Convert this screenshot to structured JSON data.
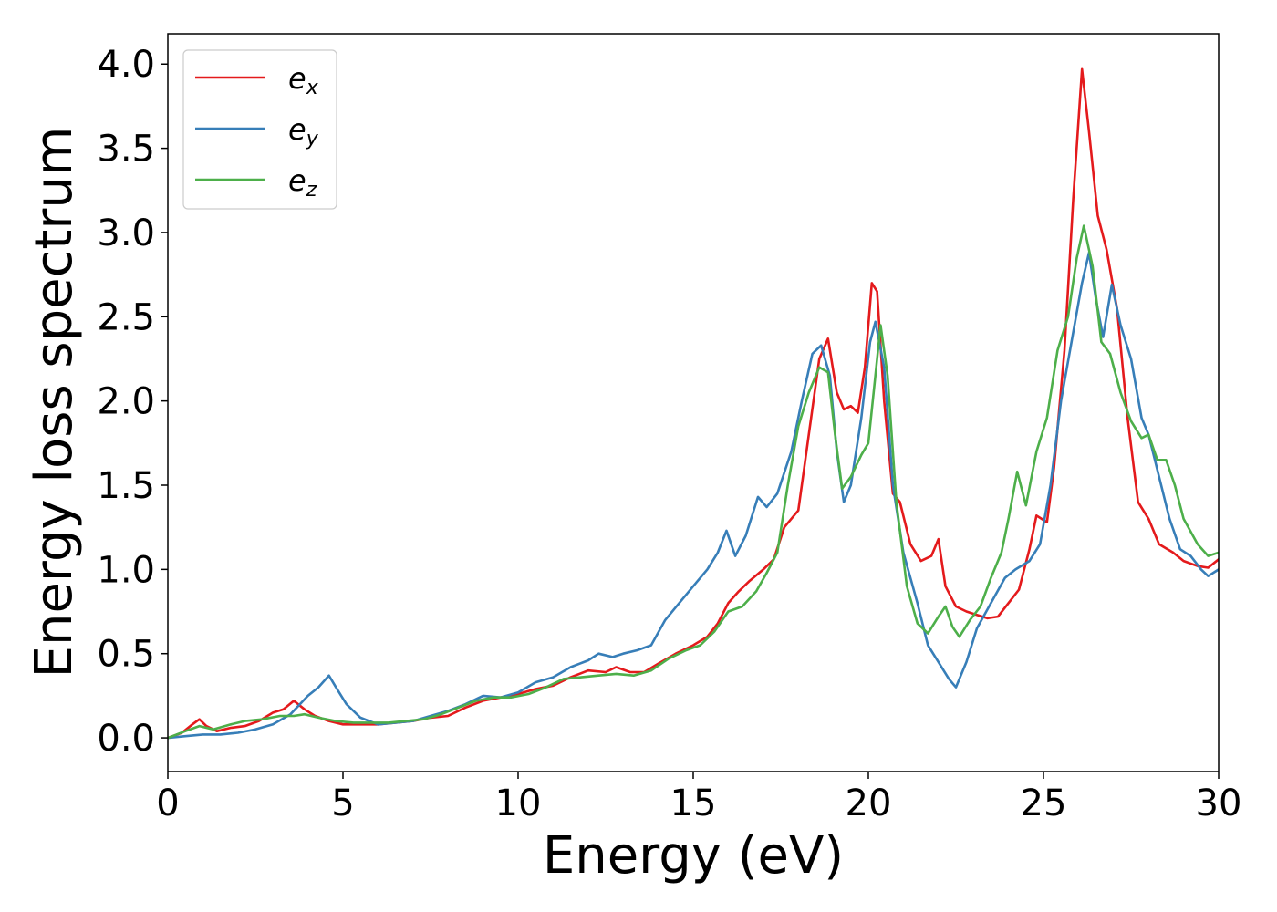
{
  "chart_data": {
    "type": "line",
    "title": "",
    "xlabel": "Energy (eV)",
    "ylabel": "Energy loss spectrum",
    "xlim": [
      0,
      30
    ],
    "ylim": [
      -0.2,
      4.18
    ],
    "xticks": [
      0,
      5,
      10,
      15,
      20,
      25,
      30
    ],
    "xtick_labels": [
      "0",
      "5",
      "10",
      "15",
      "20",
      "25",
      "30"
    ],
    "yticks": [
      0.0,
      0.5,
      1.0,
      1.5,
      2.0,
      2.5,
      3.0,
      3.5,
      4.0
    ],
    "ytick_labels": [
      "0.0",
      "0.5",
      "1.0",
      "1.5",
      "2.0",
      "2.5",
      "3.0",
      "3.5",
      "4.0"
    ],
    "grid": false,
    "legend_position": "top-left",
    "series": [
      {
        "name": "e",
        "subscript": "x",
        "color": "#e41a1c",
        "points": [
          [
            0,
            0
          ],
          [
            0.4,
            0.03
          ],
          [
            0.7,
            0.08
          ],
          [
            0.9,
            0.11
          ],
          [
            1.1,
            0.07
          ],
          [
            1.4,
            0.04
          ],
          [
            1.8,
            0.06
          ],
          [
            2.2,
            0.07
          ],
          [
            2.6,
            0.1
          ],
          [
            3.0,
            0.15
          ],
          [
            3.3,
            0.17
          ],
          [
            3.6,
            0.22
          ],
          [
            3.9,
            0.17
          ],
          [
            4.2,
            0.13
          ],
          [
            4.6,
            0.1
          ],
          [
            5.0,
            0.08
          ],
          [
            5.5,
            0.08
          ],
          [
            6.0,
            0.08
          ],
          [
            6.5,
            0.09
          ],
          [
            7.0,
            0.1
          ],
          [
            7.5,
            0.12
          ],
          [
            8.0,
            0.13
          ],
          [
            8.5,
            0.18
          ],
          [
            9.0,
            0.22
          ],
          [
            9.5,
            0.24
          ],
          [
            10.0,
            0.26
          ],
          [
            10.5,
            0.29
          ],
          [
            11.0,
            0.31
          ],
          [
            11.5,
            0.36
          ],
          [
            12.0,
            0.4
          ],
          [
            12.5,
            0.39
          ],
          [
            12.8,
            0.42
          ],
          [
            13.2,
            0.39
          ],
          [
            13.6,
            0.39
          ],
          [
            14.0,
            0.44
          ],
          [
            14.5,
            0.5
          ],
          [
            15.0,
            0.55
          ],
          [
            15.4,
            0.6
          ],
          [
            15.7,
            0.68
          ],
          [
            16.0,
            0.8
          ],
          [
            16.3,
            0.87
          ],
          [
            16.6,
            0.93
          ],
          [
            17.0,
            1.0
          ],
          [
            17.3,
            1.06
          ],
          [
            17.6,
            1.25
          ],
          [
            17.8,
            1.3
          ],
          [
            18.0,
            1.35
          ],
          [
            18.3,
            1.8
          ],
          [
            18.6,
            2.25
          ],
          [
            18.85,
            2.37
          ],
          [
            19.1,
            2.05
          ],
          [
            19.3,
            1.95
          ],
          [
            19.5,
            1.97
          ],
          [
            19.7,
            1.93
          ],
          [
            19.9,
            2.2
          ],
          [
            20.1,
            2.7
          ],
          [
            20.25,
            2.65
          ],
          [
            20.45,
            2.0
          ],
          [
            20.7,
            1.45
          ],
          [
            20.9,
            1.4
          ],
          [
            21.2,
            1.15
          ],
          [
            21.5,
            1.05
          ],
          [
            21.8,
            1.08
          ],
          [
            22.0,
            1.18
          ],
          [
            22.2,
            0.9
          ],
          [
            22.5,
            0.78
          ],
          [
            22.8,
            0.75
          ],
          [
            23.1,
            0.73
          ],
          [
            23.4,
            0.71
          ],
          [
            23.7,
            0.72
          ],
          [
            24.0,
            0.8
          ],
          [
            24.3,
            0.88
          ],
          [
            24.6,
            1.12
          ],
          [
            24.8,
            1.32
          ],
          [
            25.1,
            1.28
          ],
          [
            25.3,
            1.6
          ],
          [
            25.6,
            2.3
          ],
          [
            25.85,
            3.2
          ],
          [
            26.1,
            3.97
          ],
          [
            26.3,
            3.6
          ],
          [
            26.55,
            3.1
          ],
          [
            26.8,
            2.9
          ],
          [
            27.1,
            2.55
          ],
          [
            27.4,
            1.9
          ],
          [
            27.7,
            1.4
          ],
          [
            28.0,
            1.3
          ],
          [
            28.3,
            1.15
          ],
          [
            28.7,
            1.1
          ],
          [
            29.0,
            1.05
          ],
          [
            29.4,
            1.02
          ],
          [
            29.7,
            1.01
          ],
          [
            30,
            1.06
          ]
        ]
      },
      {
        "name": "e",
        "subscript": "y",
        "color": "#377eb8",
        "points": [
          [
            0,
            0
          ],
          [
            0.5,
            0.01
          ],
          [
            1.0,
            0.02
          ],
          [
            1.5,
            0.02
          ],
          [
            2.0,
            0.03
          ],
          [
            2.5,
            0.05
          ],
          [
            3.0,
            0.08
          ],
          [
            3.5,
            0.14
          ],
          [
            4.0,
            0.25
          ],
          [
            4.3,
            0.3
          ],
          [
            4.6,
            0.37
          ],
          [
            4.8,
            0.3
          ],
          [
            5.1,
            0.2
          ],
          [
            5.5,
            0.12
          ],
          [
            6.0,
            0.08
          ],
          [
            6.5,
            0.09
          ],
          [
            7.0,
            0.1
          ],
          [
            7.5,
            0.13
          ],
          [
            8.0,
            0.16
          ],
          [
            8.5,
            0.2
          ],
          [
            9.0,
            0.25
          ],
          [
            9.5,
            0.24
          ],
          [
            10.0,
            0.27
          ],
          [
            10.5,
            0.33
          ],
          [
            11.0,
            0.36
          ],
          [
            11.5,
            0.42
          ],
          [
            12.0,
            0.46
          ],
          [
            12.3,
            0.5
          ],
          [
            12.7,
            0.48
          ],
          [
            13.0,
            0.5
          ],
          [
            13.4,
            0.52
          ],
          [
            13.8,
            0.55
          ],
          [
            14.2,
            0.7
          ],
          [
            14.6,
            0.8
          ],
          [
            15.0,
            0.9
          ],
          [
            15.4,
            1.0
          ],
          [
            15.7,
            1.1
          ],
          [
            15.95,
            1.23
          ],
          [
            16.2,
            1.08
          ],
          [
            16.5,
            1.2
          ],
          [
            16.85,
            1.43
          ],
          [
            17.1,
            1.37
          ],
          [
            17.4,
            1.45
          ],
          [
            17.8,
            1.7
          ],
          [
            18.1,
            2.0
          ],
          [
            18.4,
            2.28
          ],
          [
            18.65,
            2.33
          ],
          [
            18.9,
            2.15
          ],
          [
            19.1,
            1.7
          ],
          [
            19.3,
            1.4
          ],
          [
            19.5,
            1.5
          ],
          [
            19.8,
            1.9
          ],
          [
            20.05,
            2.35
          ],
          [
            20.2,
            2.47
          ],
          [
            20.45,
            2.2
          ],
          [
            20.7,
            1.5
          ],
          [
            21.0,
            1.1
          ],
          [
            21.4,
            0.8
          ],
          [
            21.7,
            0.55
          ],
          [
            22.0,
            0.45
          ],
          [
            22.3,
            0.35
          ],
          [
            22.5,
            0.3
          ],
          [
            22.8,
            0.45
          ],
          [
            23.1,
            0.65
          ],
          [
            23.5,
            0.8
          ],
          [
            23.9,
            0.95
          ],
          [
            24.2,
            1.0
          ],
          [
            24.6,
            1.05
          ],
          [
            24.9,
            1.15
          ],
          [
            25.2,
            1.5
          ],
          [
            25.5,
            2.0
          ],
          [
            25.8,
            2.35
          ],
          [
            26.1,
            2.7
          ],
          [
            26.3,
            2.88
          ],
          [
            26.5,
            2.6
          ],
          [
            26.7,
            2.38
          ],
          [
            26.95,
            2.69
          ],
          [
            27.2,
            2.45
          ],
          [
            27.5,
            2.25
          ],
          [
            27.8,
            1.9
          ],
          [
            28.0,
            1.8
          ],
          [
            28.3,
            1.55
          ],
          [
            28.6,
            1.3
          ],
          [
            28.9,
            1.12
          ],
          [
            29.2,
            1.08
          ],
          [
            29.5,
            1.0
          ],
          [
            29.7,
            0.96
          ],
          [
            30,
            1.0
          ]
        ]
      },
      {
        "name": "e",
        "subscript": "z",
        "color": "#4daf4a",
        "points": [
          [
            0,
            0
          ],
          [
            0.5,
            0.04
          ],
          [
            0.9,
            0.07
          ],
          [
            1.3,
            0.05
          ],
          [
            1.8,
            0.08
          ],
          [
            2.2,
            0.1
          ],
          [
            2.7,
            0.11
          ],
          [
            3.2,
            0.13
          ],
          [
            3.6,
            0.13
          ],
          [
            3.9,
            0.14
          ],
          [
            4.3,
            0.12
          ],
          [
            4.8,
            0.1
          ],
          [
            5.3,
            0.09
          ],
          [
            5.8,
            0.09
          ],
          [
            6.3,
            0.09
          ],
          [
            6.8,
            0.1
          ],
          [
            7.3,
            0.11
          ],
          [
            7.8,
            0.14
          ],
          [
            8.3,
            0.18
          ],
          [
            8.8,
            0.22
          ],
          [
            9.3,
            0.24
          ],
          [
            9.8,
            0.24
          ],
          [
            10.3,
            0.26
          ],
          [
            10.8,
            0.3
          ],
          [
            11.3,
            0.35
          ],
          [
            11.8,
            0.36
          ],
          [
            12.3,
            0.37
          ],
          [
            12.8,
            0.38
          ],
          [
            13.3,
            0.37
          ],
          [
            13.8,
            0.4
          ],
          [
            14.3,
            0.47
          ],
          [
            14.8,
            0.52
          ],
          [
            15.2,
            0.55
          ],
          [
            15.6,
            0.63
          ],
          [
            16.0,
            0.75
          ],
          [
            16.4,
            0.78
          ],
          [
            16.8,
            0.87
          ],
          [
            17.1,
            0.98
          ],
          [
            17.4,
            1.1
          ],
          [
            17.7,
            1.5
          ],
          [
            18.0,
            1.85
          ],
          [
            18.3,
            2.05
          ],
          [
            18.6,
            2.2
          ],
          [
            18.85,
            2.17
          ],
          [
            19.05,
            1.8
          ],
          [
            19.25,
            1.48
          ],
          [
            19.5,
            1.55
          ],
          [
            19.8,
            1.68
          ],
          [
            20.0,
            1.75
          ],
          [
            20.2,
            2.15
          ],
          [
            20.35,
            2.45
          ],
          [
            20.55,
            2.15
          ],
          [
            20.8,
            1.4
          ],
          [
            21.1,
            0.9
          ],
          [
            21.4,
            0.68
          ],
          [
            21.7,
            0.62
          ],
          [
            22.0,
            0.72
          ],
          [
            22.2,
            0.78
          ],
          [
            22.4,
            0.66
          ],
          [
            22.6,
            0.6
          ],
          [
            22.9,
            0.7
          ],
          [
            23.2,
            0.78
          ],
          [
            23.5,
            0.95
          ],
          [
            23.8,
            1.1
          ],
          [
            24.0,
            1.3
          ],
          [
            24.25,
            1.58
          ],
          [
            24.5,
            1.38
          ],
          [
            24.8,
            1.7
          ],
          [
            25.1,
            1.9
          ],
          [
            25.4,
            2.3
          ],
          [
            25.7,
            2.5
          ],
          [
            25.95,
            2.85
          ],
          [
            26.15,
            3.04
          ],
          [
            26.4,
            2.8
          ],
          [
            26.65,
            2.35
          ],
          [
            26.9,
            2.28
          ],
          [
            27.2,
            2.05
          ],
          [
            27.5,
            1.88
          ],
          [
            27.8,
            1.78
          ],
          [
            28.0,
            1.8
          ],
          [
            28.25,
            1.65
          ],
          [
            28.5,
            1.65
          ],
          [
            28.75,
            1.5
          ],
          [
            29.0,
            1.3
          ],
          [
            29.4,
            1.15
          ],
          [
            29.7,
            1.08
          ],
          [
            30,
            1.1
          ]
        ]
      }
    ]
  }
}
